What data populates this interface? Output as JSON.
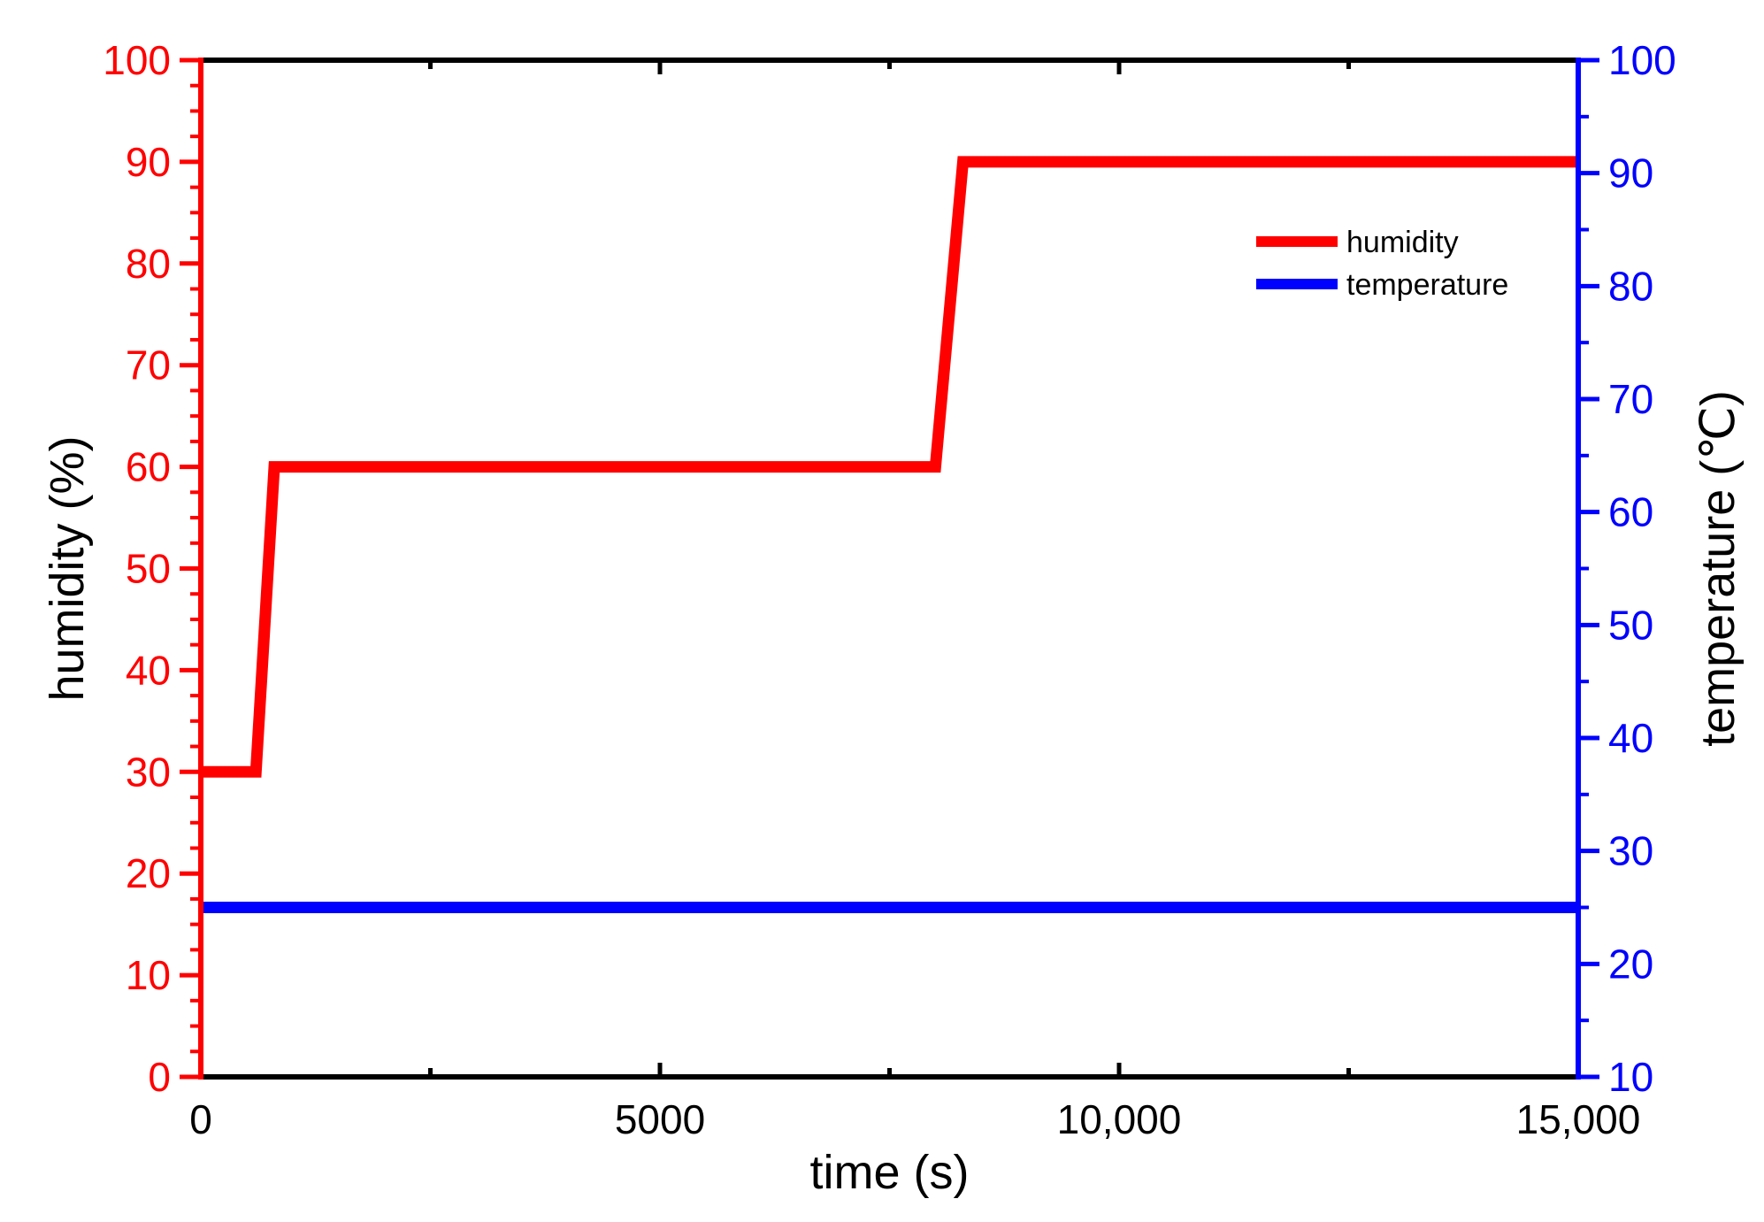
{
  "chart_data": {
    "type": "line",
    "xlabel": "time (s)",
    "ylabel_left": "humidity (%)",
    "ylabel_right": "temperature (℃)",
    "xlim": [
      0,
      15000
    ],
    "ylim_left": [
      0,
      100
    ],
    "ylim_right": [
      10,
      100
    ],
    "x_ticks": [
      {
        "value": 0,
        "label": "0"
      },
      {
        "value": 5000,
        "label": "5000"
      },
      {
        "value": 10000,
        "label": "10,000"
      },
      {
        "value": 15000,
        "label": "15,000"
      }
    ],
    "x_minor_ticks": [
      2500,
      7500,
      12500
    ],
    "left_ticks": [
      0,
      10,
      20,
      30,
      40,
      50,
      60,
      70,
      80,
      90,
      100
    ],
    "right_ticks": [
      10,
      20,
      30,
      40,
      50,
      60,
      70,
      80,
      90,
      100
    ],
    "grid": false,
    "legend_position": "top-right",
    "series": [
      {
        "name": "humidity",
        "axis": "left",
        "color": "#ff0000",
        "x": [
          0,
          600,
          800,
          8000,
          8300,
          15000
        ],
        "y": [
          30,
          30,
          60,
          60,
          90,
          90
        ]
      },
      {
        "name": "temperature",
        "axis": "right",
        "color": "#0000ff",
        "x": [
          0,
          15000
        ],
        "y": [
          25,
          25
        ]
      }
    ],
    "colors": {
      "left_axis": "#ff0000",
      "right_axis": "#0000ff",
      "frame": "#000000"
    }
  }
}
